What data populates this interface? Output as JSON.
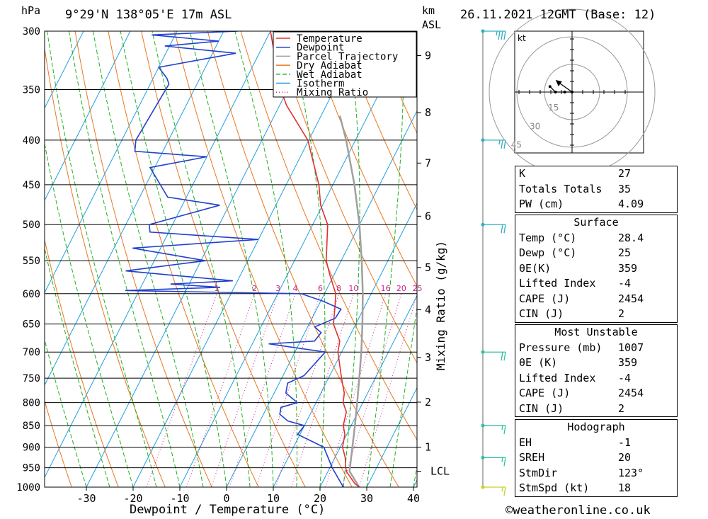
{
  "header": {
    "hpa_label": "hPa",
    "location": "9°29'N  138°05'E  17m  ASL",
    "km_label": "km",
    "asl_label": "ASL",
    "datetime": "26.11.2021  12GMT  (Base: 12)"
  },
  "chart_data": {
    "type": "skew-t",
    "xlabel": "Dewpoint / Temperature (°C)",
    "ylabel_right": "Mixing Ratio (g/kg)",
    "pressure_levels": [
      300,
      350,
      400,
      450,
      500,
      550,
      600,
      650,
      700,
      750,
      800,
      850,
      900,
      950,
      1000
    ],
    "temperature_ticks": [
      -30,
      -20,
      -10,
      0,
      10,
      20,
      30,
      40
    ],
    "height_km_ticks": [
      {
        "km": "1",
        "p": 900
      },
      {
        "km": "2",
        "p": 799
      },
      {
        "km": "3",
        "p": 710
      },
      {
        "km": "4",
        "p": 626
      },
      {
        "km": "5",
        "p": 560
      },
      {
        "km": "6",
        "p": 489
      },
      {
        "km": "7",
        "p": 425
      },
      {
        "km": "8",
        "p": 372
      },
      {
        "km": "9",
        "p": 320
      },
      {
        "km": "LCL",
        "p": 959
      }
    ],
    "mixing_ratio_labels": [
      "1",
      "2",
      "3",
      "4",
      "6",
      "8",
      "10",
      "16",
      "20",
      "25"
    ],
    "legend": [
      "Temperature",
      "Dewpoint",
      "Parcel Trajectory",
      "Dry Adiabat",
      "Wet Adiabat",
      "Isotherm",
      "Mixing Ratio"
    ],
    "colors": {
      "temperature": "#e03030",
      "dewpoint": "#2040d0",
      "parcel": "#a0a0a0",
      "dry_adiabat": "#e87820",
      "wet_adiabat": "#20b020",
      "isotherm": "#20a0e0",
      "mixing_ratio": "#d02090"
    },
    "temperature": [
      {
        "p": 1000,
        "t": 28.4
      },
      {
        "p": 990,
        "t": 27
      },
      {
        "p": 960,
        "t": 24
      },
      {
        "p": 950,
        "t": 23.4
      },
      {
        "p": 925,
        "t": 22.2
      },
      {
        "p": 900,
        "t": 20.5
      },
      {
        "p": 870,
        "t": 19.6
      },
      {
        "p": 850,
        "t": 18.3
      },
      {
        "p": 820,
        "t": 17.5
      },
      {
        "p": 800,
        "t": 15.8
      },
      {
        "p": 780,
        "t": 15
      },
      {
        "p": 750,
        "t": 12.8
      },
      {
        "p": 700,
        "t": 9.2
      },
      {
        "p": 680,
        "t": 8.4
      },
      {
        "p": 650,
        "t": 5.2
      },
      {
        "p": 620,
        "t": 3.6
      },
      {
        "p": 600,
        "t": 2.4
      },
      {
        "p": 570,
        "t": -1
      },
      {
        "p": 550,
        "t": -3.2
      },
      {
        "p": 500,
        "t": -6.8
      },
      {
        "p": 475,
        "t": -10.4
      },
      {
        "p": 450,
        "t": -13
      },
      {
        "p": 400,
        "t": -20.2
      },
      {
        "p": 365,
        "t": -28.5
      },
      {
        "p": 350,
        "t": -31.5
      },
      {
        "p": 300,
        "t": -40
      }
    ],
    "dewpoint": [
      {
        "p": 1000,
        "t": 25
      },
      {
        "p": 950,
        "t": 20.5
      },
      {
        "p": 900,
        "t": 16.5
      },
      {
        "p": 870,
        "t": 9.5
      },
      {
        "p": 850,
        "t": 10
      },
      {
        "p": 840,
        "t": 6
      },
      {
        "p": 825,
        "t": 3.5
      },
      {
        "p": 810,
        "t": 3
      },
      {
        "p": 800,
        "t": 6
      },
      {
        "p": 780,
        "t": 2.5
      },
      {
        "p": 760,
        "t": 1.8
      },
      {
        "p": 745,
        "t": 4.5
      },
      {
        "p": 700,
        "t": 6.5
      },
      {
        "p": 685,
        "t": -6.5
      },
      {
        "p": 680,
        "t": 3
      },
      {
        "p": 665,
        "t": 3.5
      },
      {
        "p": 655,
        "t": 1.5
      },
      {
        "p": 640,
        "t": 5
      },
      {
        "p": 625,
        "t": 5.2
      },
      {
        "p": 612,
        "t": 0.5
      },
      {
        "p": 600,
        "t": -5
      },
      {
        "p": 598,
        "t": -21
      },
      {
        "p": 595,
        "t": -43
      },
      {
        "p": 590,
        "t": -23
      },
      {
        "p": 585,
        "t": -34
      },
      {
        "p": 580,
        "t": -21
      },
      {
        "p": 565,
        "t": -45
      },
      {
        "p": 550,
        "t": -29
      },
      {
        "p": 532,
        "t": -46
      },
      {
        "p": 520,
        "t": -20
      },
      {
        "p": 510,
        "t": -44
      },
      {
        "p": 500,
        "t": -45
      },
      {
        "p": 475,
        "t": -32
      },
      {
        "p": 465,
        "t": -44
      },
      {
        "p": 430,
        "t": -51
      },
      {
        "p": 418,
        "t": -40
      },
      {
        "p": 412,
        "t": -56
      },
      {
        "p": 400,
        "t": -57
      },
      {
        "p": 345,
        "t": -56
      },
      {
        "p": 340,
        "t": -57
      },
      {
        "p": 330,
        "t": -60
      },
      {
        "p": 318,
        "t": -45
      },
      {
        "p": 312,
        "t": -61
      },
      {
        "p": 308,
        "t": -50
      },
      {
        "p": 303,
        "t": -65
      },
      {
        "p": 300,
        "t": -47
      }
    ],
    "parcel": [
      {
        "p": 1000,
        "t": 28.4
      },
      {
        "p": 959,
        "t": 24.6
      },
      {
        "p": 900,
        "t": 22.6
      },
      {
        "p": 850,
        "t": 20.8
      },
      {
        "p": 800,
        "t": 18.8
      },
      {
        "p": 750,
        "t": 16.6
      },
      {
        "p": 700,
        "t": 14.2
      },
      {
        "p": 650,
        "t": 11.4
      },
      {
        "p": 600,
        "t": 8.2
      },
      {
        "p": 550,
        "t": 4.4
      },
      {
        "p": 500,
        "t": 0
      },
      {
        "p": 450,
        "t": -5.4
      },
      {
        "p": 400,
        "t": -12
      },
      {
        "p": 375,
        "t": -16
      }
    ],
    "wind_levels": [
      {
        "p": 300,
        "dir": 110,
        "spd": 35
      },
      {
        "p": 400,
        "dir": 105,
        "spd": 25
      },
      {
        "p": 500,
        "dir": 100,
        "spd": 20
      },
      {
        "p": 700,
        "dir": 95,
        "spd": 20
      },
      {
        "p": 850,
        "dir": 100,
        "spd": 15
      },
      {
        "p": 925,
        "dir": 110,
        "spd": 15
      },
      {
        "p": 1000,
        "dir": 95,
        "spd": 15
      }
    ]
  },
  "hodograph": {
    "unit": "kt",
    "ring_labels": [
      "15",
      "30",
      "45"
    ],
    "points": [
      {
        "u": -12,
        "v": 3
      },
      {
        "u": -9,
        "v": 0
      },
      {
        "u": -4,
        "v": 0
      },
      {
        "u": 0,
        "v": 0
      },
      {
        "u": -7,
        "v": 5
      }
    ]
  },
  "indices": {
    "top": [
      {
        "label": "K",
        "value": "27"
      },
      {
        "label": "Totals Totals",
        "value": "35"
      },
      {
        "label": "PW (cm)",
        "value": "4.09"
      }
    ],
    "surface": {
      "title": "Surface",
      "rows": [
        {
          "label": "Temp (°C)",
          "value": "28.4"
        },
        {
          "label": "Dewp (°C)",
          "value": "25"
        },
        {
          "label": "θE(K)",
          "value": "359"
        },
        {
          "label": "Lifted Index",
          "value": "-4"
        },
        {
          "label": "CAPE (J)",
          "value": "2454"
        },
        {
          "label": "CIN (J)",
          "value": "2"
        }
      ]
    },
    "most_unstable": {
      "title": "Most Unstable",
      "rows": [
        {
          "label": "Pressure (mb)",
          "value": "1007"
        },
        {
          "label": "θE (K)",
          "value": "359"
        },
        {
          "label": "Lifted Index",
          "value": "-4"
        },
        {
          "label": "CAPE (J)",
          "value": "2454"
        },
        {
          "label": "CIN (J)",
          "value": "2"
        }
      ]
    },
    "hodograph_box": {
      "title": "Hodograph",
      "rows": [
        {
          "label": "EH",
          "value": "-1"
        },
        {
          "label": "SREH",
          "value": "20"
        },
        {
          "label": "StmDir",
          "value": "123°"
        },
        {
          "label": "StmSpd (kt)",
          "value": "18"
        }
      ]
    }
  },
  "credit": "©weatheronline.co.uk"
}
